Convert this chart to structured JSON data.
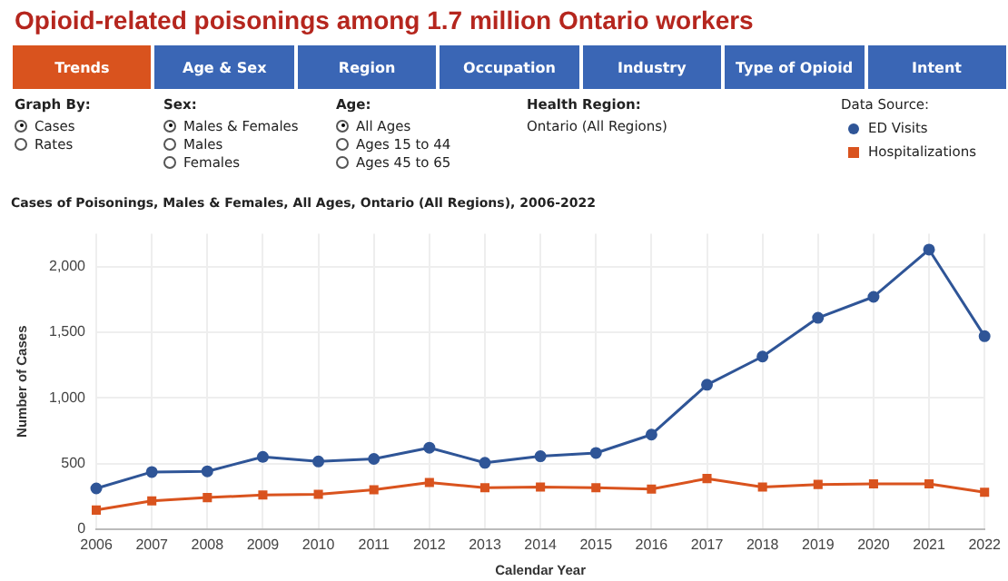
{
  "chart_data": {
    "type": "line",
    "title": "Opioid-related poisonings among 1.7 million Ontario workers",
    "subtitle": "Cases of Poisonings, Males & Females, All Ages, Ontario (All Regions), 2006-2022",
    "xlabel": "Calendar Year",
    "ylabel": "Number of Cases",
    "legend_title": "Data Source:",
    "categories": [
      "2006",
      "2007",
      "2008",
      "2009",
      "2010",
      "2011",
      "2012",
      "2013",
      "2014",
      "2015",
      "2016",
      "2017",
      "2018",
      "2019",
      "2020",
      "2021",
      "2022"
    ],
    "series": [
      {
        "name": "ED Visits",
        "color": "#2f5597",
        "marker": "circle",
        "values": [
          310,
          435,
          440,
          550,
          515,
          535,
          620,
          505,
          555,
          580,
          720,
          1100,
          1315,
          1610,
          1770,
          2130,
          1470
        ]
      },
      {
        "name": "Hospitalizations",
        "color": "#d9531e",
        "marker": "square",
        "values": [
          145,
          215,
          240,
          260,
          265,
          300,
          355,
          315,
          320,
          315,
          305,
          385,
          320,
          340,
          345,
          345,
          280
        ]
      }
    ],
    "ylim": [
      0,
      2250
    ],
    "yticks": [
      {
        "value": 0,
        "label": "0"
      },
      {
        "value": 500,
        "label": "500"
      },
      {
        "value": 1000,
        "label": "1,000"
      },
      {
        "value": 1500,
        "label": "1,500"
      },
      {
        "value": 2000,
        "label": "2,000"
      }
    ],
    "grid": true,
    "legend": "top right",
    "annotations": [
      "Trends",
      "Age & Sex",
      "Region",
      "Occupation",
      "Industry",
      "Type of Opioid",
      "Intent",
      "Graph By:",
      "Cases",
      "Rates",
      "Sex:",
      "Males & Females",
      "Males",
      "Females",
      "Age:",
      "All Ages",
      "Ages 15 to 44",
      "Ages 45 to 65",
      "Health Region:",
      "Ontario (All Regions)"
    ]
  }
}
